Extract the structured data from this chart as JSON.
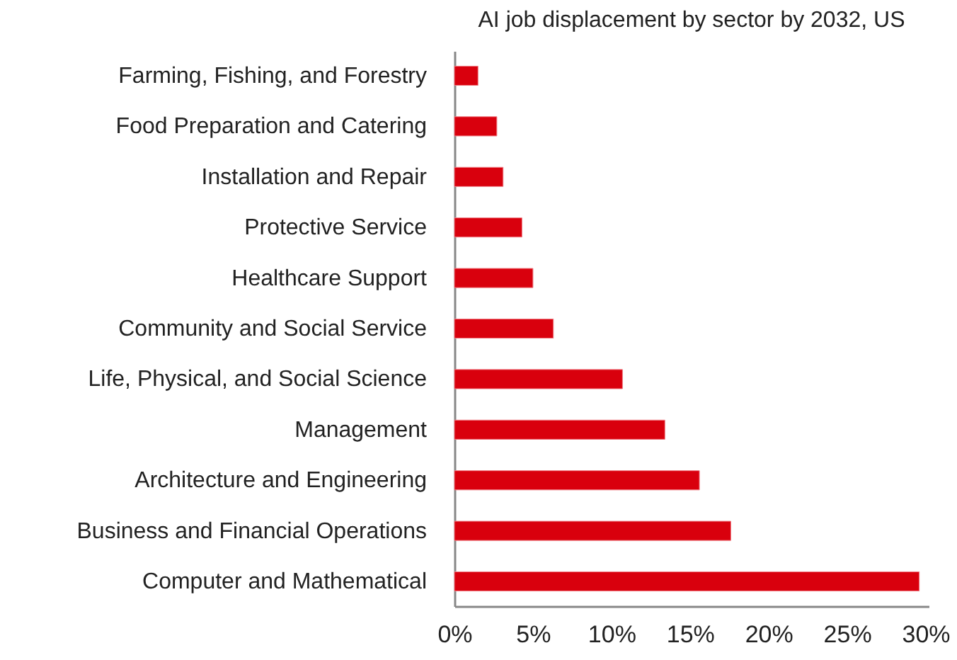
{
  "chart_data": {
    "type": "bar",
    "orientation": "horizontal",
    "title": "AI job displacement by sector by 2032, US",
    "categories": [
      "Farming, Fishing, and Forestry",
      "Food Preparation and Catering",
      "Installation and Repair",
      "Protective Service",
      "Healthcare Support",
      "Community and Social Service",
      "Life, Physical, and Social Science",
      "Management",
      "Architecture and Engineering",
      "Business and Financial Operations",
      "Computer and Mathematical"
    ],
    "values": [
      1.5,
      2.7,
      3.1,
      4.3,
      5.0,
      6.3,
      10.7,
      13.4,
      15.6,
      17.6,
      29.6
    ],
    "color": "#d9000d",
    "xlim": [
      0,
      30.2
    ],
    "xticks": [
      {
        "value": 0,
        "label": "0%"
      },
      {
        "value": 5,
        "label": "5%"
      },
      {
        "value": 10,
        "label": "10%"
      },
      {
        "value": 15,
        "label": "15%"
      },
      {
        "value": 20,
        "label": "20%"
      },
      {
        "value": 25,
        "label": "25%"
      },
      {
        "value": 30,
        "label": "30%"
      }
    ],
    "grid": false
  }
}
